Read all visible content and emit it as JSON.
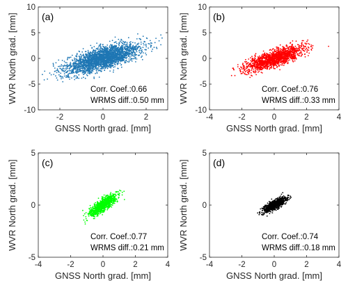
{
  "chart_data": [
    {
      "type": "scatter",
      "panel_label": "(a)",
      "xlabel": "GNSS North grad. [mm]",
      "ylabel": "WVR North grad. [mm]",
      "xlim": [
        -3,
        3
      ],
      "ylim": [
        -10,
        10
      ],
      "xticks": [
        "-2",
        "0",
        "2"
      ],
      "yticks": [
        "-10",
        "-5",
        "0",
        "5",
        "10"
      ],
      "color": "#1f77b4",
      "point_count": 2600,
      "spread_x_sd": 0.85,
      "slope": 1.15,
      "residual_sd": 1.05,
      "annotations": [
        "Corr. Coef.:0.66",
        "WRMS diff.:0.50 mm"
      ]
    },
    {
      "type": "scatter",
      "panel_label": "(b)",
      "xlabel": "GNSS North grad. [mm]",
      "ylabel": "WVR North grad. [mm]",
      "xlim": [
        -4,
        4
      ],
      "ylim": [
        -10,
        10
      ],
      "xticks": [
        "-4",
        "-2",
        "0",
        "2",
        "4"
      ],
      "yticks": [
        "-10",
        "-5",
        "0",
        "5",
        "10"
      ],
      "color": "#ff0000",
      "point_count": 1600,
      "spread_x_sd": 0.9,
      "slope": 1.0,
      "residual_sd": 0.75,
      "annotations": [
        "Corr. Coef.:0.76",
        "WRMS diff.:0.33 mm"
      ]
    },
    {
      "type": "scatter",
      "panel_label": "(c)",
      "xlabel": "GNSS North grad. [mm]",
      "ylabel": "WVR North grad. [mm]",
      "xlim": [
        -4,
        4
      ],
      "ylim": [
        -5,
        5
      ],
      "xticks": [
        "-4",
        "-2",
        "0",
        "2",
        "4"
      ],
      "yticks": [
        "-5",
        "0",
        "5"
      ],
      "color": "#00ff00",
      "point_count": 900,
      "spread_x_sd": 0.42,
      "slope": 1.0,
      "residual_sd": 0.3,
      "annotations": [
        "Corr. Coef.:0.77",
        "WRMS diff.:0.21 mm"
      ]
    },
    {
      "type": "scatter",
      "panel_label": "(d)",
      "xlabel": "GNSS North grad. [mm]",
      "ylabel": "WVR North grad. [mm]",
      "xlim": [
        -4,
        4
      ],
      "ylim": [
        -5,
        5
      ],
      "xticks": [
        "-4",
        "-2",
        "0",
        "2",
        "4"
      ],
      "yticks": [
        "-5",
        "0",
        "5"
      ],
      "color": "#000000",
      "point_count": 900,
      "spread_x_sd": 0.35,
      "slope": 0.8,
      "residual_sd": 0.22,
      "annotations": [
        "Corr. Coef.:0.74",
        "WRMS diff.:0.18 mm"
      ]
    }
  ]
}
